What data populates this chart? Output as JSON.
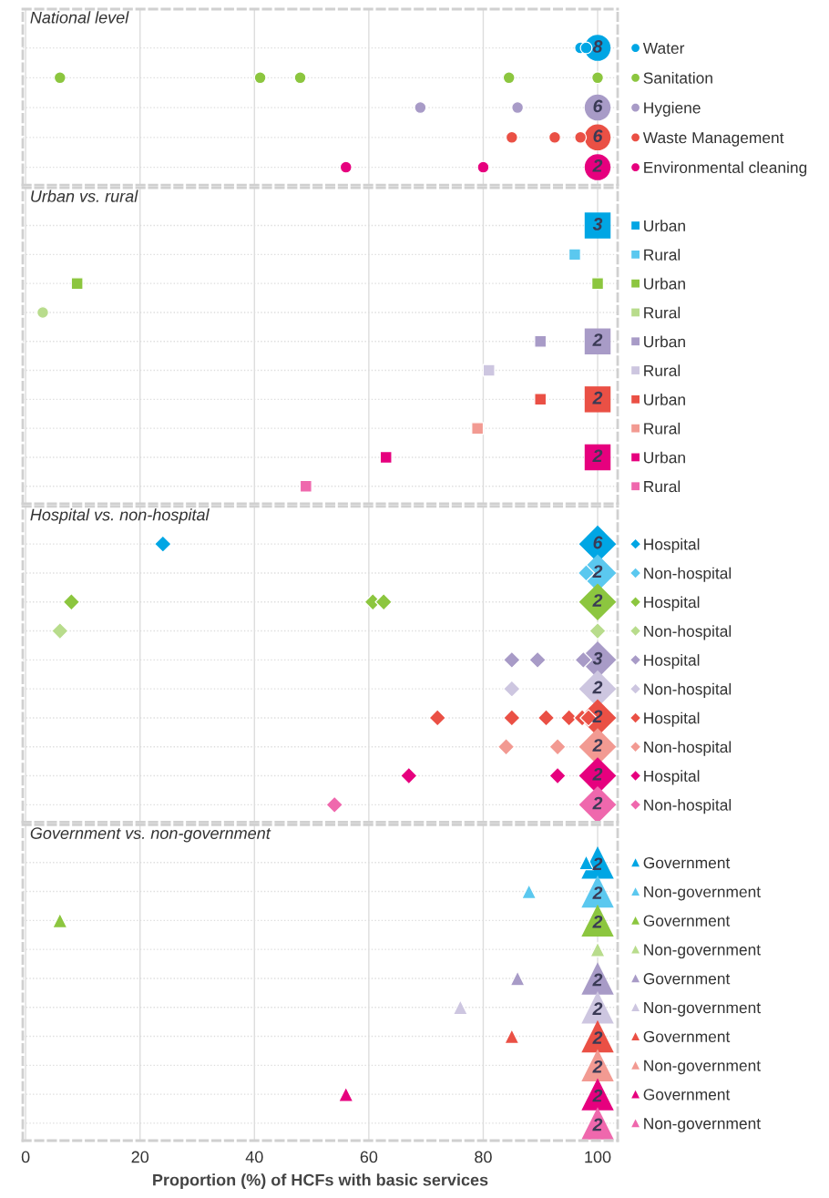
{
  "chart_data": [
    {
      "type": "bubble",
      "orientation": "horizontal",
      "title": "National level",
      "marker": "circle",
      "xlim": [
        -0.5,
        103.5
      ],
      "xticks": [
        0,
        20,
        40,
        60,
        80,
        100
      ],
      "grid": true,
      "tick_labels": "y",
      "categories": [
        "Water",
        "Sanitation",
        "Hygiene",
        "Waste Management",
        "Environmental cleaning"
      ],
      "series": [
        {
          "colors": [
            "#00a6e4",
            "#8cc63f",
            "#a89bc7",
            "#ea5045",
            "#e6007e"
          ],
          "values": [
            97,
            6,
            69,
            85,
            56
          ],
          "sizes": [
            0.2,
            0.2,
            0.2,
            0.2,
            0.2
          ]
        },
        {
          "colors": [
            "#00a6e4",
            "#8cc63f",
            "#a89bc7",
            "#ea5045",
            "#e6007e"
          ],
          "values": [
            98,
            41,
            86,
            92.5,
            80
          ],
          "sizes": [
            0.2,
            0.2,
            0.2,
            0.2,
            0.2
          ]
        },
        {
          "colors": [
            "#00a6e4",
            "#8cc63f",
            "#a89bc7",
            "#ea5045",
            "#e6007e"
          ],
          "values": [
            null,
            48,
            null,
            97,
            null
          ],
          "sizes": [
            null,
            0.2,
            null,
            0.2,
            null
          ]
        },
        {
          "colors": [
            "#00a6e4",
            "#8cc63f",
            "#a89bc7",
            "#ea5045",
            "#e6007e"
          ],
          "values": [
            null,
            84.5,
            null,
            null,
            null
          ],
          "sizes": [
            null,
            0.2,
            null,
            null,
            null
          ]
        },
        {
          "colors": [
            "#00a6e4",
            "#8cc63f",
            "#a89bc7",
            "#ea5045",
            "#e6007e"
          ],
          "values": [
            null,
            100,
            null,
            null,
            null
          ],
          "sizes": [
            null,
            0.2,
            null,
            null,
            null
          ]
        },
        {
          "colors": [
            "#00a6e4",
            "#8cc63f",
            "#a89bc7",
            "#ea5045",
            "#e6007e"
          ],
          "values": [
            100,
            null,
            100,
            100,
            100
          ],
          "sizes": [
            1,
            null,
            1,
            1,
            1
          ]
        }
      ],
      "annotations": [
        "8",
        "6",
        "6",
        "2"
      ]
    },
    {
      "type": "bubble",
      "orientation": "horizontal",
      "title": "Urban vs. rural",
      "marker": "square",
      "xlim": [
        -0.5,
        103.5
      ],
      "xticks": [
        0,
        20,
        40,
        60,
        80,
        100
      ],
      "grid": true,
      "tick_labels": "y",
      "categories": [
        "Urban",
        "Rural",
        "Urban",
        "Rural",
        "Urban",
        "Rural",
        "Urban",
        "Rural",
        "Urban",
        "Rural"
      ],
      "series": [
        {
          "colors": [
            "#00a6e4",
            "#5bc8ef",
            "#8cc63f",
            "#b8dc8c",
            "#a89bc7",
            "#cdc6e0",
            "#ea5045",
            "#f29a92",
            "#e6007e",
            "#ef68ad"
          ],
          "values": [
            null,
            96,
            9,
            null,
            90,
            81,
            90,
            79,
            63,
            49
          ],
          "sizes": [
            null,
            0.2,
            0.2,
            null,
            0.2,
            0.2,
            0.2,
            0.2,
            0.2,
            0.2
          ]
        },
        {
          "colors": [
            "#00a6e4",
            "#5bc8ef",
            "#8cc63f",
            "#b8dc8c",
            "#a89bc7",
            "#cdc6e0",
            "#ea5045",
            "#f29a92",
            "#e6007e",
            "#ef68ad"
          ],
          "values": [
            null,
            null,
            null,
            3,
            null,
            null,
            null,
            null,
            null,
            null
          ],
          "sizes": [
            null,
            null,
            null,
            0.2,
            null,
            null,
            null,
            null,
            null,
            null
          ],
          "marker": "circle"
        },
        {
          "colors": [
            "#00a6e4",
            "#5bc8ef",
            "#8cc63f",
            "#b8dc8c",
            "#a89bc7",
            "#cdc6e0",
            "#ea5045",
            "#f29a92",
            "#e6007e",
            "#ef68ad"
          ],
          "values": [
            null,
            null,
            100,
            null,
            null,
            null,
            null,
            null,
            null,
            null
          ],
          "sizes": [
            null,
            null,
            0.2,
            null,
            null,
            null,
            null,
            null,
            null,
            null
          ]
        },
        {
          "colors": [
            "#00a6e4",
            "#5bc8ef",
            "#8cc63f",
            "#b8dc8c",
            "#a89bc7",
            "#cdc6e0",
            "#ea5045",
            "#f29a92",
            "#e6007e",
            "#ef68ad"
          ],
          "values": [
            100,
            null,
            null,
            null,
            100,
            null,
            100,
            null,
            100,
            null
          ],
          "sizes": [
            1,
            null,
            null,
            null,
            1,
            null,
            1,
            null,
            1,
            null
          ]
        }
      ],
      "annotations": [
        "3",
        "2",
        "2",
        "2"
      ]
    },
    {
      "type": "bubble",
      "orientation": "horizontal",
      "title": "Hospital vs. non-hospital",
      "marker": "diamond",
      "xlim": [
        -0.5,
        103.5
      ],
      "xticks": [
        0,
        20,
        40,
        60,
        80,
        100
      ],
      "grid": true,
      "tick_labels": "y",
      "categories": [
        "Hospital",
        "Non-hospital",
        "Hospital",
        "Non-hospital",
        "Hospital",
        "Non-hospital",
        "Hospital",
        "Non-hospital",
        "Hospital",
        "Non-hospital"
      ],
      "series": [
        {
          "colors": [
            "#00a6e4",
            "#5bc8ef",
            "#8cc63f",
            "#b8dc8c",
            "#a89bc7",
            "#cdc6e0",
            "#ea5045",
            "#f29a92",
            "#e6007e",
            "#ef68ad"
          ],
          "values": [
            24,
            98,
            8,
            6,
            85,
            85,
            72,
            84,
            67,
            54
          ],
          "sizes": [
            0.2,
            0.2,
            0.2,
            0.2,
            0.2,
            0.2,
            0.2,
            0.2,
            0.2,
            0.2
          ]
        },
        {
          "colors": [
            "#00a6e4",
            "#5bc8ef",
            "#8cc63f",
            "#b8dc8c",
            "#a89bc7",
            "#cdc6e0",
            "#ea5045",
            "#f29a92",
            "#e6007e",
            "#ef68ad"
          ],
          "values": [
            null,
            null,
            60.7,
            100,
            89.5,
            null,
            85,
            93,
            93,
            null
          ],
          "sizes": [
            null,
            null,
            0.2,
            0.2,
            0.2,
            null,
            0.2,
            0.2,
            0.2,
            null
          ]
        },
        {
          "colors": [
            "#00a6e4",
            "#5bc8ef",
            "#8cc63f",
            "#b8dc8c",
            "#a89bc7",
            "#cdc6e0",
            "#ea5045",
            "#f29a92",
            "#e6007e",
            "#ef68ad"
          ],
          "values": [
            null,
            null,
            62.6,
            null,
            97.5,
            null,
            91,
            null,
            null,
            null
          ],
          "sizes": [
            null,
            null,
            0.2,
            null,
            0.2,
            null,
            0.2,
            null,
            null,
            null
          ]
        },
        {
          "colors": [
            "#00a6e4",
            "#5bc8ef",
            "#8cc63f",
            "#b8dc8c",
            "#a89bc7",
            "#cdc6e0",
            "#ea5045",
            "#f29a92",
            "#e6007e",
            "#ef68ad"
          ],
          "values": [
            null,
            null,
            null,
            null,
            null,
            null,
            95,
            null,
            null,
            null
          ],
          "sizes": [
            null,
            null,
            null,
            null,
            null,
            null,
            0.2,
            null,
            null,
            null
          ]
        },
        {
          "colors": [
            "#00a6e4",
            "#5bc8ef",
            "#8cc63f",
            "#b8dc8c",
            "#a89bc7",
            "#cdc6e0",
            "#ea5045",
            "#f29a92",
            "#e6007e",
            "#ef68ad"
          ],
          "values": [
            null,
            null,
            null,
            null,
            null,
            null,
            97.3,
            null,
            null,
            null
          ],
          "sizes": [
            null,
            null,
            null,
            null,
            null,
            null,
            0.2,
            null,
            null,
            null
          ]
        },
        {
          "colors": [
            "#00a6e4",
            "#5bc8ef",
            "#8cc63f",
            "#b8dc8c",
            "#a89bc7",
            "#cdc6e0",
            "#ea5045",
            "#f29a92",
            "#e6007e",
            "#ef68ad"
          ],
          "values": [
            null,
            null,
            null,
            null,
            null,
            null,
            98.4,
            null,
            null,
            null
          ],
          "sizes": [
            null,
            null,
            null,
            null,
            null,
            null,
            0.2,
            null,
            null,
            null
          ]
        },
        {
          "colors": [
            "#00a6e4",
            "#5bc8ef",
            "#8cc63f",
            "#b8dc8c",
            "#a89bc7",
            "#cdc6e0",
            "#ea5045",
            "#f29a92",
            "#e6007e",
            "#ef68ad"
          ],
          "values": [
            100,
            100,
            100,
            null,
            100,
            100,
            100,
            100,
            100,
            100
          ],
          "sizes": [
            1,
            1,
            1,
            null,
            1,
            1,
            1,
            1,
            1,
            1
          ]
        }
      ],
      "annotations": [
        "6",
        "2",
        "2",
        "3",
        "2",
        "2",
        "2",
        "2",
        "2"
      ]
    },
    {
      "type": "bubble",
      "orientation": "horizontal",
      "title": "Government vs. non-government",
      "marker": "triangle",
      "xlim": [
        -0.5,
        103.5
      ],
      "xticks": [
        0,
        20,
        40,
        60,
        80,
        100
      ],
      "grid": true,
      "xlabel": "Proportion (%) of HCFs with basic services",
      "categories": [
        "Government",
        "Non-government",
        "Government",
        "Non-government",
        "Government",
        "Non-government",
        "Government",
        "Non-government",
        "Government",
        "Non-government"
      ],
      "series": [
        {
          "colors": [
            "#00a6e4",
            "#5bc8ef",
            "#8cc63f",
            "#b8dc8c",
            "#a89bc7",
            "#cdc6e0",
            "#ea5045",
            "#f29a92",
            "#e6007e",
            "#ef68ad"
          ],
          "values": [
            98,
            88,
            6,
            100,
            86,
            76,
            85,
            null,
            56,
            null
          ],
          "sizes": [
            0.2,
            0.2,
            0.2,
            0.2,
            0.2,
            0.2,
            0.2,
            null,
            0.2,
            null
          ]
        },
        {
          "colors": [
            "#00a6e4",
            "#5bc8ef",
            "#8cc63f",
            "#b8dc8c",
            "#a89bc7",
            "#cdc6e0",
            "#ea5045",
            "#f29a92",
            "#e6007e",
            "#ef68ad"
          ],
          "values": [
            100,
            100,
            100,
            null,
            100,
            100,
            100,
            100,
            100,
            100
          ],
          "sizes": [
            1,
            1,
            1,
            null,
            1,
            1,
            1,
            1,
            1,
            1
          ]
        }
      ],
      "annotations": [
        "2",
        "2",
        "2",
        "2",
        "2",
        "2",
        "2",
        "2",
        "2"
      ]
    }
  ]
}
